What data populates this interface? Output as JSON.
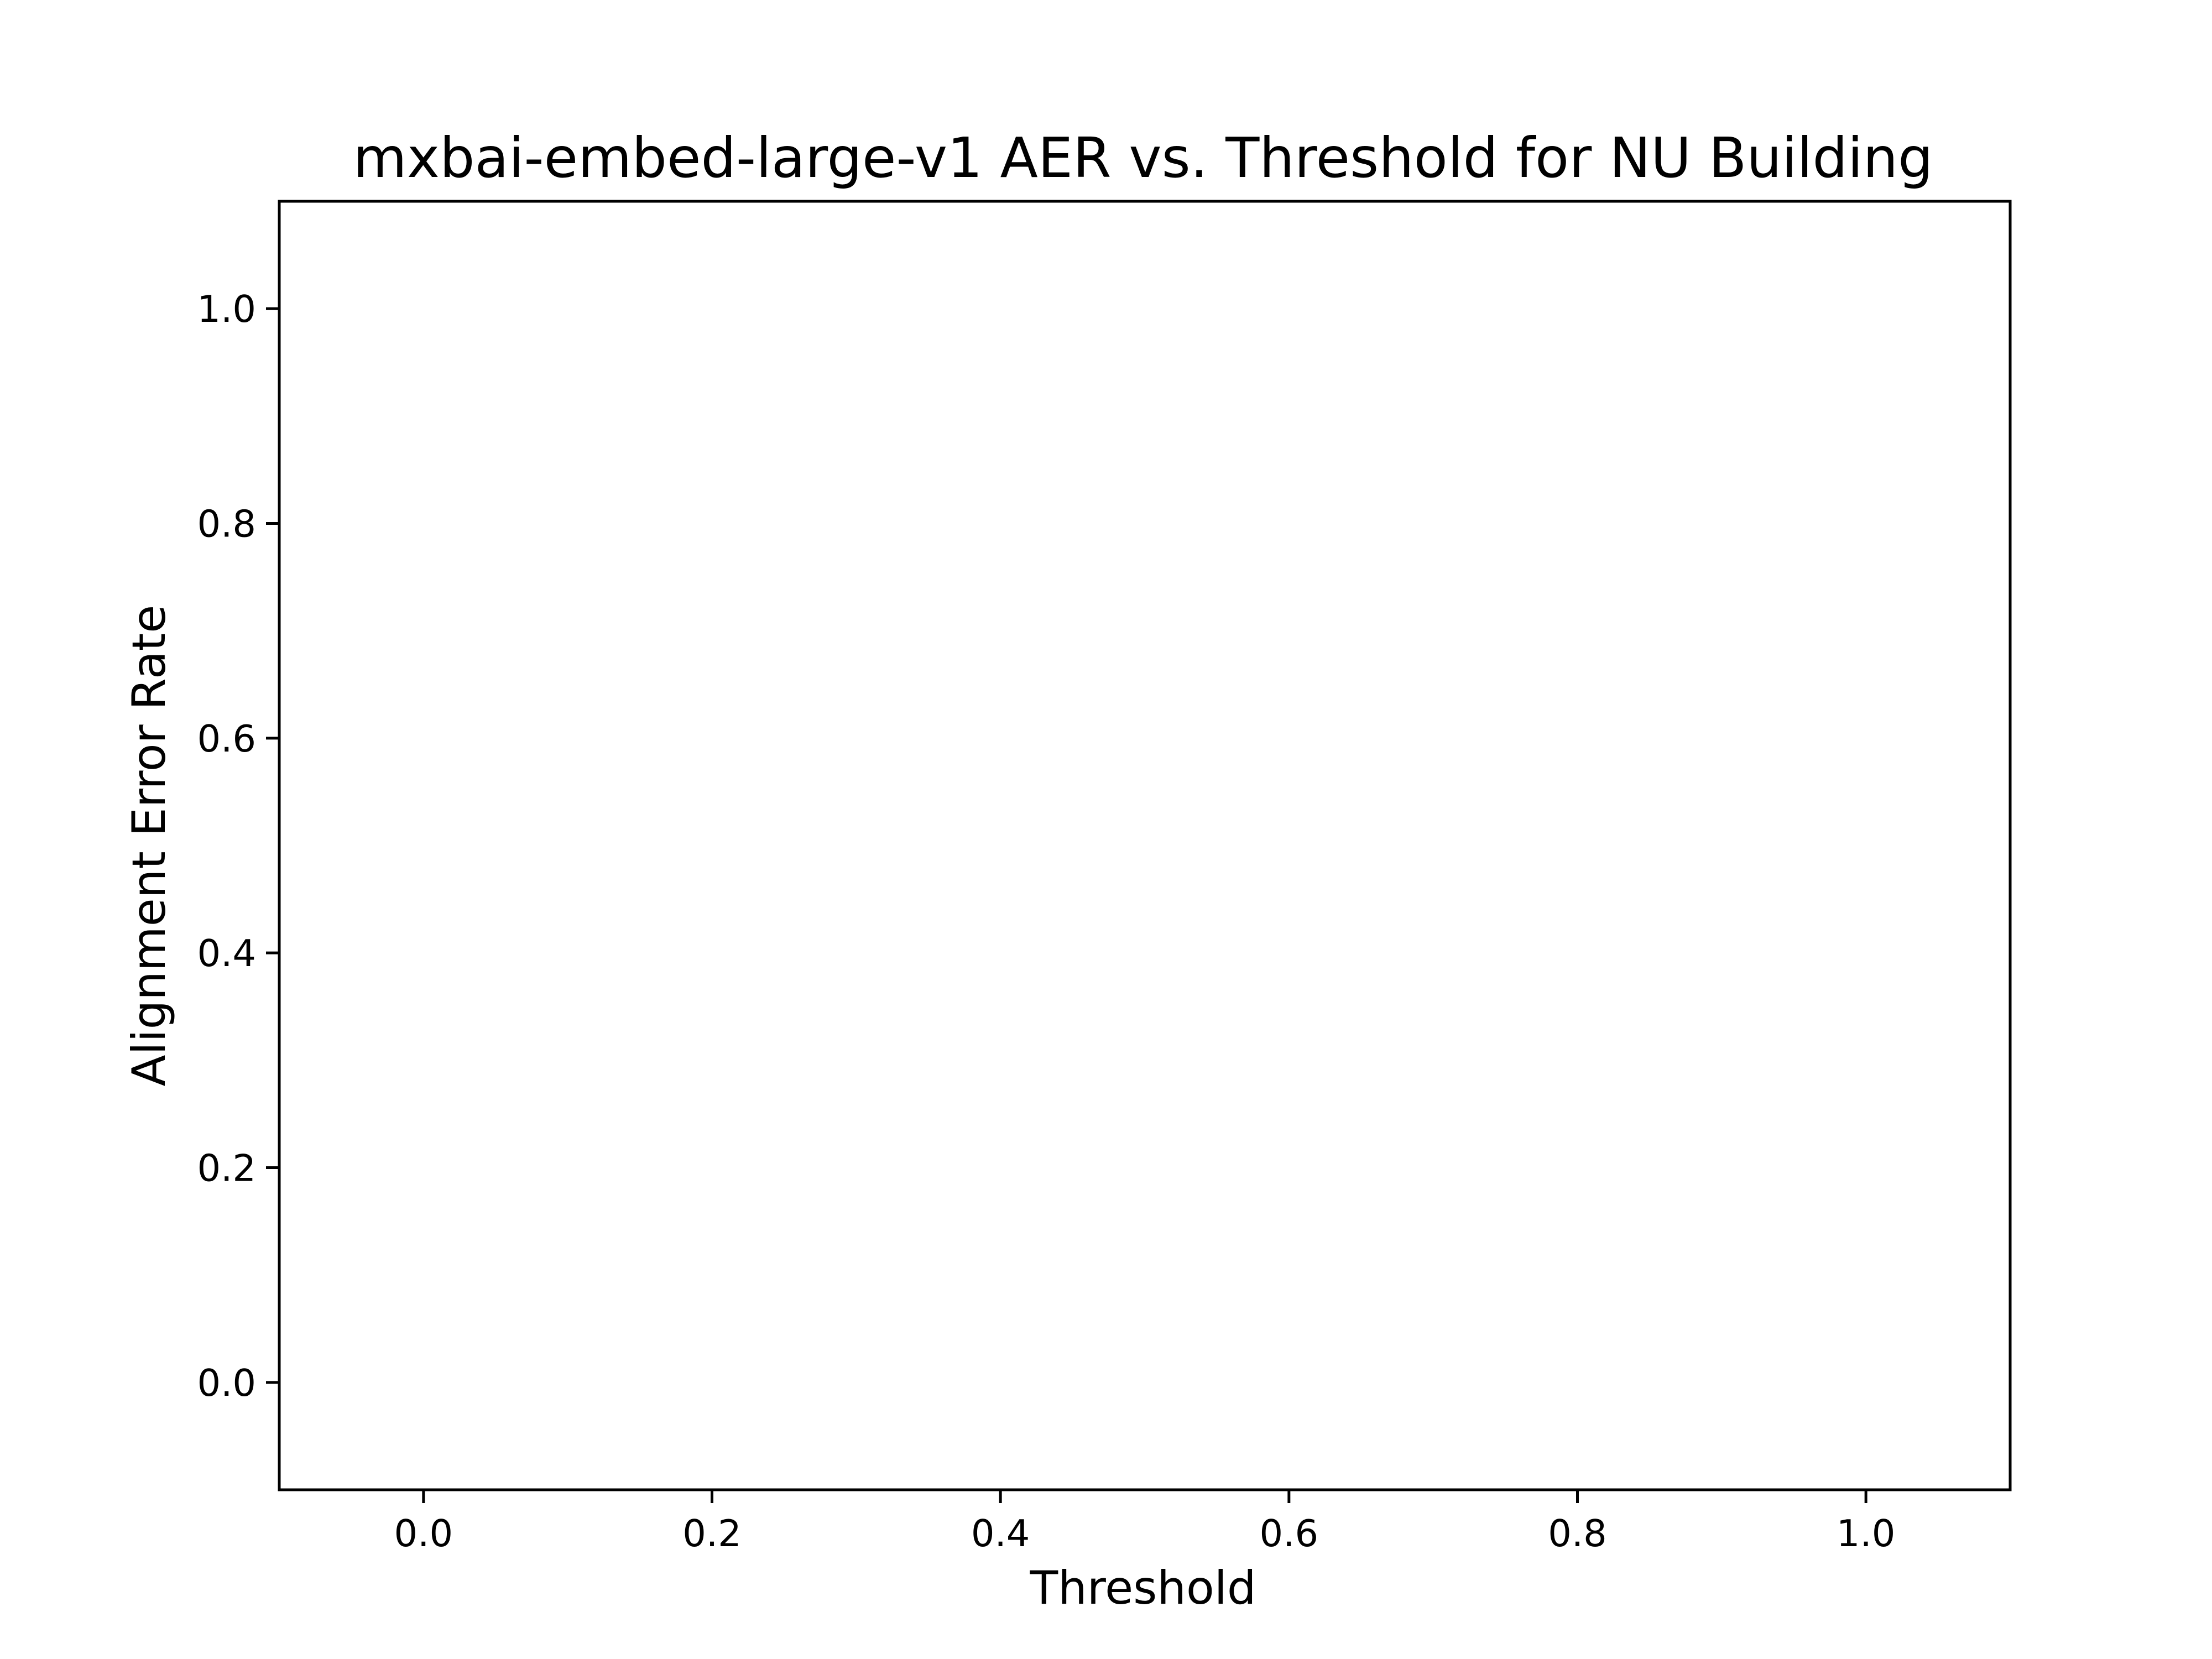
{
  "chart_data": {
    "type": "line",
    "title": "mxbai-embed-large-v1 AER vs. Threshold for NU Building",
    "xlabel": "Threshold",
    "ylabel": "Alignment Error Rate",
    "xlim": [
      -0.1,
      1.1
    ],
    "ylim": [
      -0.1,
      1.1
    ],
    "xticks": [
      0.0,
      0.2,
      0.4,
      0.6,
      0.8,
      1.0
    ],
    "yticks": [
      0.0,
      0.2,
      0.4,
      0.6,
      0.8,
      1.0
    ],
    "xtick_labels": [
      "0.0",
      "0.2",
      "0.4",
      "0.6",
      "0.8",
      "1.0"
    ],
    "ytick_labels": [
      "0.0",
      "0.2",
      "0.4",
      "0.6",
      "0.8",
      "1.0"
    ],
    "grid": false,
    "series": []
  }
}
